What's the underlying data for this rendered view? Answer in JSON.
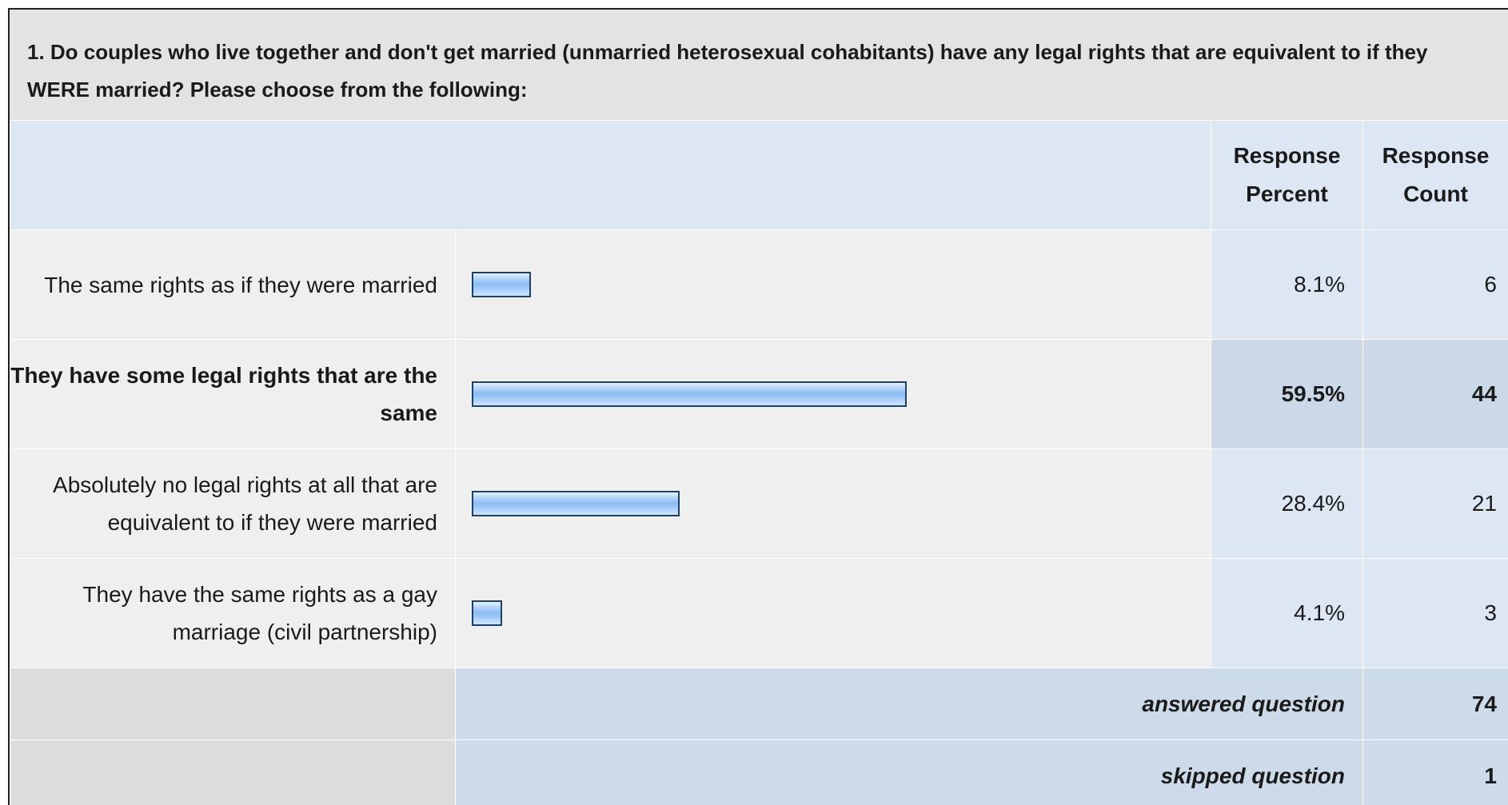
{
  "question": {
    "text": "1. Do couples who live together and don't get married (unmarried heterosexual cohabitants) have any legal rights that are equivalent to if they WERE married? Please choose from the following:"
  },
  "table": {
    "header": {
      "percent_label": "Response Percent",
      "count_label": "Response Count"
    },
    "rows": [
      {
        "label": "The same rights as if they were married",
        "percent": "8.1%",
        "count": "6",
        "fraction": 0.081
      },
      {
        "label": "They have some legal rights that are the same",
        "percent": "59.5%",
        "count": "44",
        "fraction": 0.595
      },
      {
        "label": "Absolutely no legal rights at all that are equivalent to if they were married",
        "percent": "28.4%",
        "count": "21",
        "fraction": 0.284
      },
      {
        "label": "They have the same rights as a gay marriage (civil partnership)",
        "percent": "4.1%",
        "count": "3",
        "fraction": 0.041
      }
    ],
    "summary": {
      "answered_label": "answered question",
      "answered_value": "74",
      "skipped_label": "skipped question",
      "skipped_value": "1"
    }
  },
  "colors": {
    "bar_border": "#1e3f66",
    "bar_fill": "#8cbdf2",
    "header_bg": "#dde7f4",
    "highlight_bg": "#cbd8e8"
  }
}
